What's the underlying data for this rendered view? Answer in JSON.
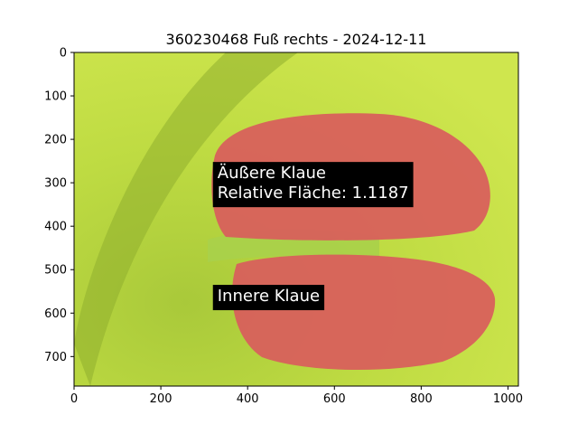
{
  "chart_data": {
    "type": "image",
    "title": "360230468 Fuß rechts - 2024-12-11",
    "xlim": [
      0,
      1024
    ],
    "ylim": [
      768,
      0
    ],
    "xticks": [
      0,
      200,
      400,
      600,
      800,
      1000
    ],
    "yticks": [
      0,
      100,
      200,
      300,
      400,
      500,
      600,
      700
    ],
    "annotations": [
      {
        "lines": [
          "Äußere Klaue",
          "Relative Fläche: 1.1187"
        ],
        "x": 320,
        "y": 300
      },
      {
        "lines": [
          "Innere Klaue"
        ],
        "x": 320,
        "y": 560
      }
    ],
    "regions": [
      {
        "name": "Äußere Klaue",
        "color": "#d95c5c"
      },
      {
        "name": "Innere Klaue",
        "color": "#d95c5c"
      }
    ],
    "background_color": "#c8e04a"
  }
}
